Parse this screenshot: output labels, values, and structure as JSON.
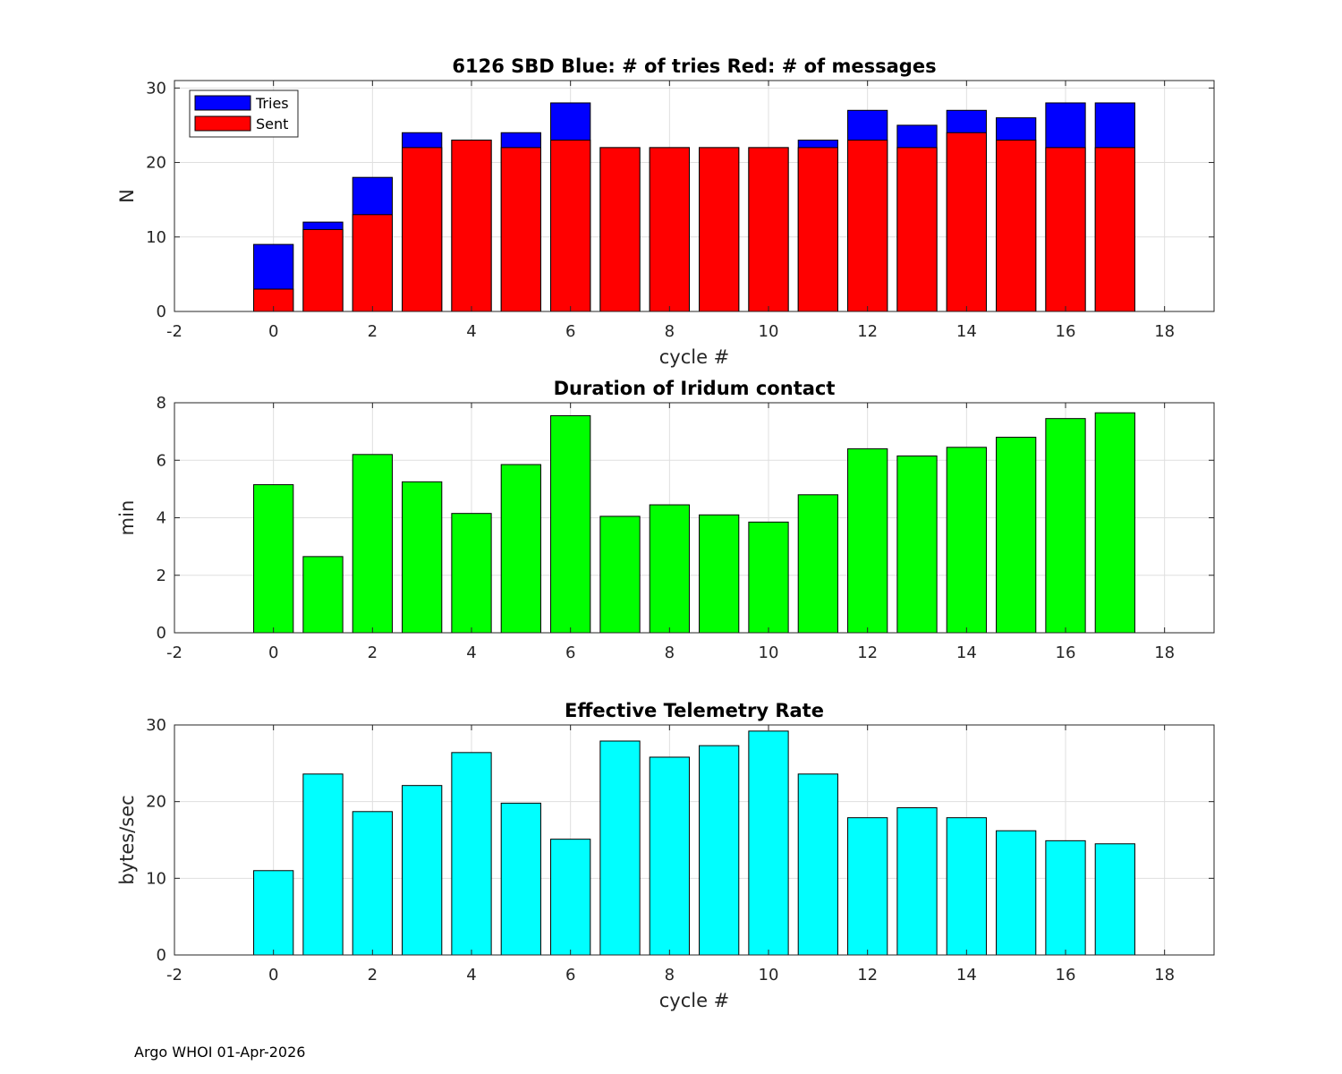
{
  "footer": "Argo WHOI 01-Apr-2026",
  "chart_data": [
    {
      "type": "bar",
      "stacked": "overlay",
      "title": "6126 SBD  Blue: # of tries   Red: # of messages",
      "xlabel": "cycle #",
      "ylabel": "N",
      "xlim": [
        -2,
        19
      ],
      "ylim": [
        0,
        31
      ],
      "xticks": [
        -2,
        0,
        2,
        4,
        6,
        8,
        10,
        12,
        14,
        16,
        18
      ],
      "yticks": [
        0,
        10,
        20,
        30
      ],
      "grid": true,
      "legend_position": "top-left",
      "x": [
        0,
        1,
        2,
        3,
        4,
        5,
        6,
        7,
        8,
        9,
        10,
        11,
        12,
        13,
        14,
        15,
        16,
        17
      ],
      "series": [
        {
          "name": "Tries",
          "color": "#0000ff",
          "values": [
            9,
            12,
            18,
            24,
            23,
            24,
            28,
            22,
            22,
            22,
            22,
            23,
            27,
            25,
            27,
            26,
            28,
            28
          ]
        },
        {
          "name": "Sent",
          "color": "#ff0000",
          "values": [
            3,
            11,
            13,
            22,
            23,
            22,
            23,
            22,
            22,
            22,
            22,
            22,
            23,
            22,
            24,
            23,
            22,
            22
          ]
        }
      ]
    },
    {
      "type": "bar",
      "title": "Duration of Iridum contact",
      "xlabel": "",
      "ylabel": "min",
      "xlim": [
        -2,
        19
      ],
      "ylim": [
        0,
        8
      ],
      "xticks": [
        -2,
        0,
        2,
        4,
        6,
        8,
        10,
        12,
        14,
        16,
        18
      ],
      "yticks": [
        0,
        2,
        4,
        6,
        8
      ],
      "grid": true,
      "x": [
        0,
        1,
        2,
        3,
        4,
        5,
        6,
        7,
        8,
        9,
        10,
        11,
        12,
        13,
        14,
        15,
        16,
        17
      ],
      "series": [
        {
          "name": "Duration",
          "color": "#00ff00",
          "values": [
            5.15,
            2.65,
            6.2,
            5.25,
            4.15,
            5.85,
            7.55,
            4.05,
            4.45,
            4.1,
            3.85,
            4.8,
            6.4,
            6.15,
            6.45,
            6.8,
            7.45,
            7.65
          ]
        }
      ]
    },
    {
      "type": "bar",
      "title": "Effective Telemetry Rate",
      "xlabel": "cycle #",
      "ylabel": "bytes/sec",
      "xlim": [
        -2,
        19
      ],
      "ylim": [
        0,
        30
      ],
      "xticks": [
        -2,
        0,
        2,
        4,
        6,
        8,
        10,
        12,
        14,
        16,
        18
      ],
      "yticks": [
        0,
        10,
        20,
        30
      ],
      "grid": true,
      "x": [
        0,
        1,
        2,
        3,
        4,
        5,
        6,
        7,
        8,
        9,
        10,
        11,
        12,
        13,
        14,
        15,
        16,
        17
      ],
      "series": [
        {
          "name": "Rate",
          "color": "#00ffff",
          "values": [
            11,
            23.6,
            18.7,
            22.1,
            26.4,
            19.8,
            15.1,
            27.9,
            25.8,
            27.3,
            29.2,
            23.6,
            17.9,
            19.2,
            17.9,
            16.2,
            14.9,
            14.5
          ]
        }
      ]
    }
  ]
}
